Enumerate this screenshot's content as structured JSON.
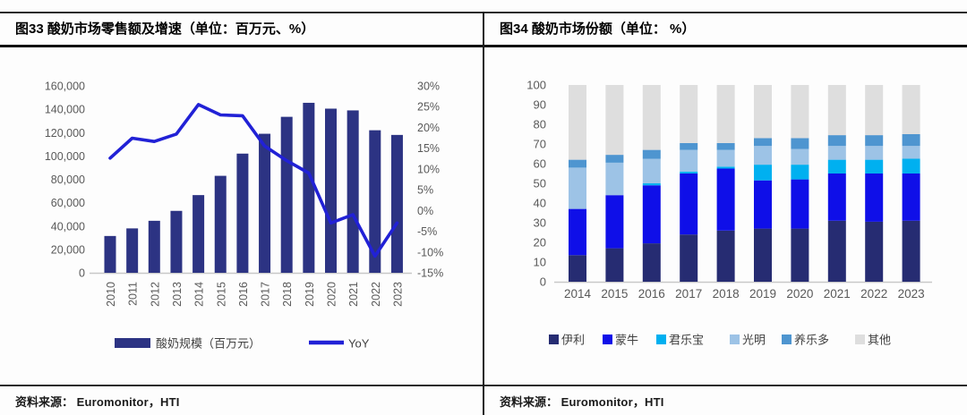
{
  "left_panel": {
    "title": "图33 酸奶市场零售额及增速（单位：百万元、%）",
    "source_label": "资料来源：",
    "source_value": "Euromonitor，HTI"
  },
  "right_panel": {
    "title": "图34 酸奶市场份额（单位： %）",
    "source_label": "资料来源：",
    "source_value": "Euromonitor，HTI"
  },
  "chart_data": [
    {
      "type": "bar",
      "subtype": "bar+line-dual-axis",
      "title": "酸奶市场零售额及增速（单位：百万元、%）",
      "categories": [
        "2010",
        "2011",
        "2012",
        "2013",
        "2014",
        "2015",
        "2016",
        "2017",
        "2018",
        "2019",
        "2020",
        "2021",
        "2022",
        "2023"
      ],
      "series": [
        {
          "name": "酸奶规模（百万元）",
          "kind": "bar",
          "axis": "left",
          "color": "#2c3383",
          "values": [
            31500,
            38000,
            44500,
            53000,
            66500,
            83000,
            102000,
            119000,
            133500,
            145500,
            140500,
            139000,
            122000,
            118000
          ]
        },
        {
          "name": "YoY",
          "kind": "line",
          "axis": "right",
          "color": "#2121d6",
          "values": [
            12.6,
            17.4,
            16.6,
            18.4,
            25.5,
            23,
            22.8,
            15.5,
            12,
            9,
            -3,
            -1,
            -11,
            -3
          ]
        }
      ],
      "left_axis": {
        "min": 0,
        "max": 160000,
        "step": 20000
      },
      "right_axis": {
        "min": -15,
        "max": 30,
        "step": 5,
        "suffix": "%"
      },
      "grid": false,
      "legend_position": "bottom",
      "tick_color": "#595959",
      "axis_line_color": "#c8c8c8"
    },
    {
      "type": "bar",
      "subtype": "stacked-bar",
      "title": "酸奶市场份额（单位： %）",
      "categories": [
        "2014",
        "2015",
        "2016",
        "2017",
        "2018",
        "2019",
        "2020",
        "2021",
        "2022",
        "2023"
      ],
      "series": [
        {
          "name": "伊利",
          "color": "#262c72",
          "values": [
            13.5,
            17,
            19.5,
            24,
            26,
            27,
            27,
            31,
            30.5,
            31
          ]
        },
        {
          "name": "蒙牛",
          "color": "#0f0fe8",
          "values": [
            23.5,
            27,
            29.5,
            31,
            31.5,
            24.5,
            25,
            24,
            24.5,
            24
          ]
        },
        {
          "name": "君乐宝",
          "color": "#00b0f0",
          "values": [
            0,
            0,
            1,
            1,
            1,
            8,
            7.5,
            7,
            7,
            7.5
          ]
        },
        {
          "name": "光明",
          "color": "#9dc3e6",
          "values": [
            21,
            16.5,
            12.5,
            11,
            8.5,
            9.5,
            8,
            7,
            7,
            6.5
          ]
        },
        {
          "name": "养乐多",
          "color": "#4e95d0",
          "values": [
            4,
            4,
            4.5,
            3.5,
            3.5,
            4,
            5.5,
            5.5,
            5.5,
            6
          ]
        },
        {
          "name": "其他",
          "color": "#dedede",
          "values": [
            38,
            35.5,
            33,
            29.5,
            29.5,
            27,
            27,
            25.5,
            25.5,
            25
          ]
        }
      ],
      "y_axis": {
        "min": 0,
        "max": 100,
        "step": 10
      },
      "grid": false,
      "legend_position": "bottom",
      "tick_color": "#595959",
      "axis_line_color": "#c8c8c8"
    }
  ]
}
